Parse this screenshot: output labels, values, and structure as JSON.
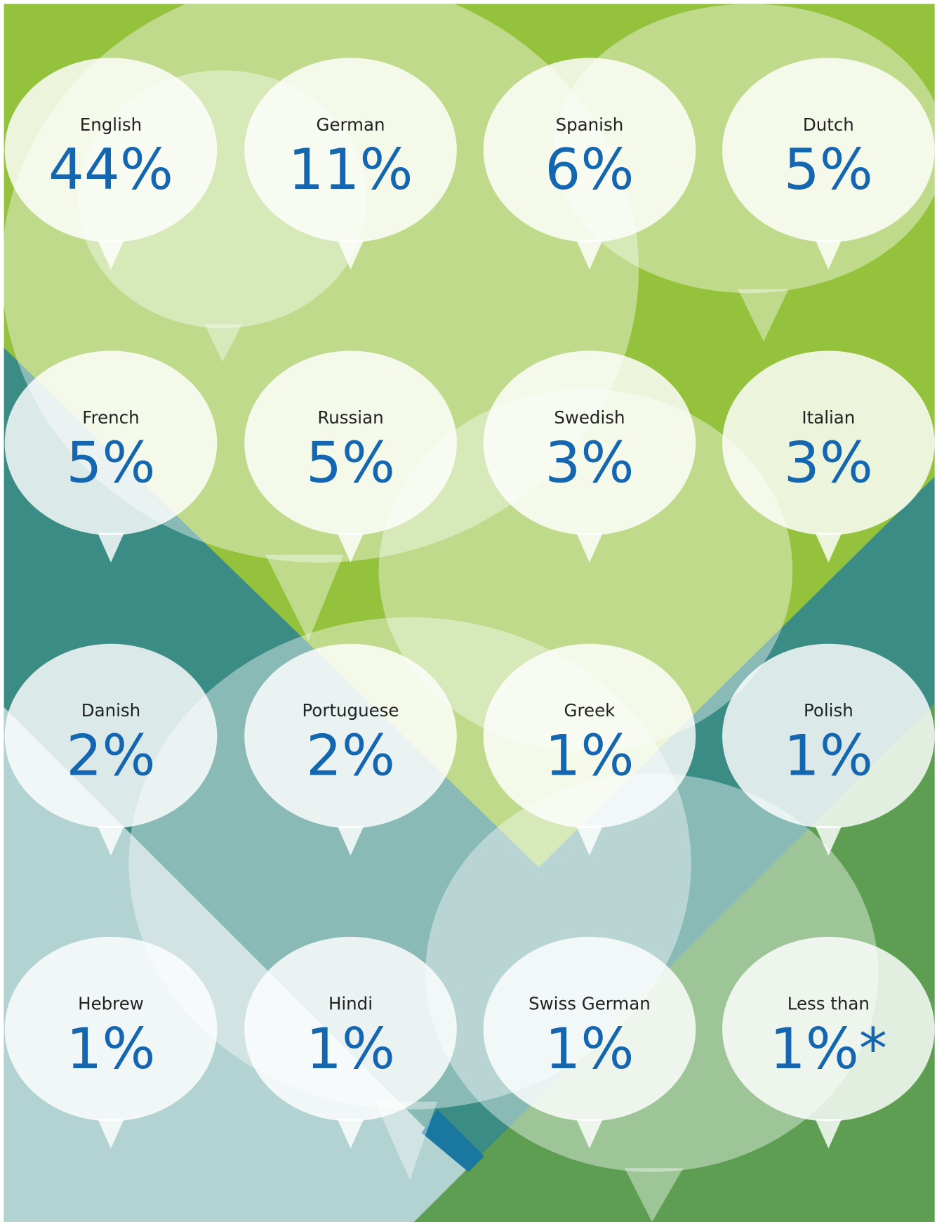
{
  "items": [
    {
      "label": "English",
      "value": "44%"
    },
    {
      "label": "German",
      "value": "11%"
    },
    {
      "label": "Spanish",
      "value": "6%"
    },
    {
      "label": "Dutch",
      "value": "5%"
    },
    {
      "label": "French",
      "value": "5%"
    },
    {
      "label": "Russian",
      "value": "5%"
    },
    {
      "label": "Swedish",
      "value": "3%"
    },
    {
      "label": "Italian",
      "value": "3%"
    },
    {
      "label": "Danish",
      "value": "2%"
    },
    {
      "label": "Portuguese",
      "value": "2%"
    },
    {
      "label": "Greek",
      "value": "1%"
    },
    {
      "label": "Polish",
      "value": "1%"
    },
    {
      "label": "Hebrew",
      "value": "1%"
    },
    {
      "label": "Hindi",
      "value": "1%"
    },
    {
      "label": "Swiss German",
      "value": "1%"
    },
    {
      "label": "Less than",
      "value": "1%*"
    }
  ]
}
